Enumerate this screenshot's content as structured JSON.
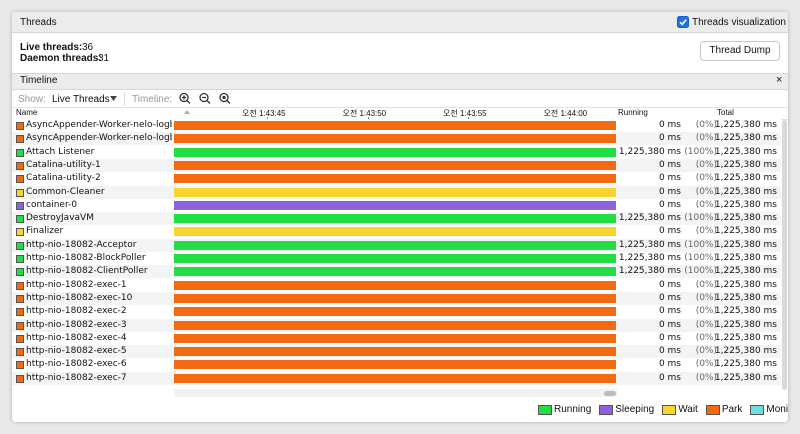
{
  "header": {
    "title": "Threads",
    "checkbox_label": "Threads visualization",
    "checked": true
  },
  "summary": {
    "live_label": "Live threads:",
    "live_value": 36,
    "daemon_label": "Daemon threads:",
    "daemon_value": 31,
    "button": "Thread Dump"
  },
  "timeline": {
    "title": "Timeline",
    "close": "×",
    "show_label": "Show:",
    "show_value": "Live Threads",
    "timeline_label": "Timeline:"
  },
  "table": {
    "columns": {
      "name": "Name",
      "running": "Running",
      "total": "Total"
    },
    "time_ticks": [
      "오전 1:43:45",
      "오전 1:43:50",
      "오전 1:43:55",
      "오전 1:44:00"
    ],
    "rows": [
      {
        "name": "AsyncAppender-Worker-nelo-logb",
        "state": "Park",
        "running": "0 ms",
        "percent": "(0%)",
        "total": "1,225,380 ms"
      },
      {
        "name": "AsyncAppender-Worker-nelo-logb",
        "state": "Park",
        "running": "0 ms",
        "percent": "(0%)",
        "total": "1,225,380 ms"
      },
      {
        "name": "Attach Listener",
        "state": "Running",
        "running": "1,225,380 ms",
        "percent": "(100%)",
        "total": "1,225,380 ms"
      },
      {
        "name": "Catalina-utility-1",
        "state": "Park",
        "running": "0 ms",
        "percent": "(0%)",
        "total": "1,225,380 ms"
      },
      {
        "name": "Catalina-utility-2",
        "state": "Park",
        "running": "0 ms",
        "percent": "(0%)",
        "total": "1,225,380 ms"
      },
      {
        "name": "Common-Cleaner",
        "state": "Wait",
        "running": "0 ms",
        "percent": "(0%)",
        "total": "1,225,380 ms"
      },
      {
        "name": "container-0",
        "state": "Sleeping",
        "running": "0 ms",
        "percent": "(0%)",
        "total": "1,225,380 ms"
      },
      {
        "name": "DestroyJavaVM",
        "state": "Running",
        "running": "1,225,380 ms",
        "percent": "(100%)",
        "total": "1,225,380 ms"
      },
      {
        "name": "Finalizer",
        "state": "Wait",
        "running": "0 ms",
        "percent": "(0%)",
        "total": "1,225,380 ms"
      },
      {
        "name": "http-nio-18082-Acceptor",
        "state": "Running",
        "running": "1,225,380 ms",
        "percent": "(100%)",
        "total": "1,225,380 ms"
      },
      {
        "name": "http-nio-18082-BlockPoller",
        "state": "Running",
        "running": "1,225,380 ms",
        "percent": "(100%)",
        "total": "1,225,380 ms"
      },
      {
        "name": "http-nio-18082-ClientPoller",
        "state": "Running",
        "running": "1,225,380 ms",
        "percent": "(100%)",
        "total": "1,225,380 ms"
      },
      {
        "name": "http-nio-18082-exec-1",
        "state": "Park",
        "running": "0 ms",
        "percent": "(0%)",
        "total": "1,225,380 ms"
      },
      {
        "name": "http-nio-18082-exec-10",
        "state": "Park",
        "running": "0 ms",
        "percent": "(0%)",
        "total": "1,225,380 ms"
      },
      {
        "name": "http-nio-18082-exec-2",
        "state": "Park",
        "running": "0 ms",
        "percent": "(0%)",
        "total": "1,225,380 ms"
      },
      {
        "name": "http-nio-18082-exec-3",
        "state": "Park",
        "running": "0 ms",
        "percent": "(0%)",
        "total": "1,225,380 ms"
      },
      {
        "name": "http-nio-18082-exec-4",
        "state": "Park",
        "running": "0 ms",
        "percent": "(0%)",
        "total": "1,225,380 ms"
      },
      {
        "name": "http-nio-18082-exec-5",
        "state": "Park",
        "running": "0 ms",
        "percent": "(0%)",
        "total": "1,225,380 ms"
      },
      {
        "name": "http-nio-18082-exec-6",
        "state": "Park",
        "running": "0 ms",
        "percent": "(0%)",
        "total": "1,225,380 ms"
      },
      {
        "name": "http-nio-18082-exec-7",
        "state": "Park",
        "running": "0 ms",
        "percent": "(0%)",
        "total": "1,225,380 ms"
      }
    ]
  },
  "legend": [
    {
      "label": "Running",
      "color": "#22dd44"
    },
    {
      "label": "Sleeping",
      "color": "#8e62d8"
    },
    {
      "label": "Wait",
      "color": "#f7d52c"
    },
    {
      "label": "Park",
      "color": "#f36a10"
    },
    {
      "label": "Monitor",
      "color": "#72dcdc"
    }
  ]
}
